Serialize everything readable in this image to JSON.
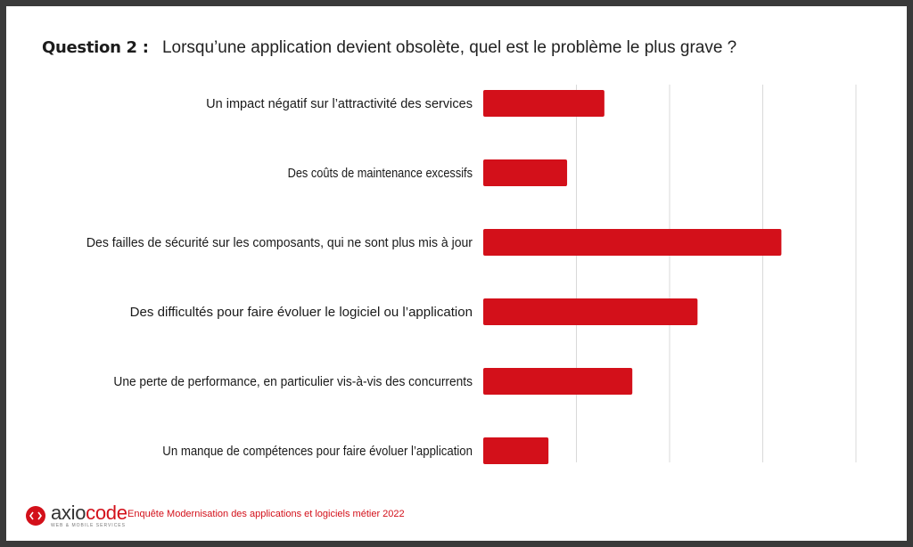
{
  "question": {
    "label": "Question 2 :",
    "text": "Lorsqu’une application devient obsolète, quel est le problème le plus grave ?"
  },
  "chart_data": {
    "type": "bar",
    "orientation": "horizontal",
    "categories": [
      "Un impact négatif sur l’attractivité des services",
      "Des coûts de maintenance excessifs",
      "Des failles de sécurité sur les composants, qui ne sont plus mis à jour",
      "Des difficultés pour faire évoluer le logiciel ou l’application",
      "Une perte de performance, en particulier vis-à-vis des concurrents",
      "Un manque de compétences pour faire évoluer l’application"
    ],
    "values": [
      13,
      9,
      32,
      23,
      16,
      7
    ],
    "xlim": [
      0,
      40
    ],
    "gridlines": [
      0,
      10,
      20,
      30,
      40
    ],
    "grid": true,
    "bar_color": "#d3101a"
  },
  "footer": {
    "logo_name_prefix": "axio",
    "logo_name_accent": "code",
    "logo_tagline": "WEB & MOBILE SERVICES",
    "source": "Enquête Modernisation des applications et logiciels métier 2022"
  },
  "colors": {
    "accent": "#d3101a",
    "frame": "#3a3a3a",
    "grid": "#d9d9d9"
  }
}
